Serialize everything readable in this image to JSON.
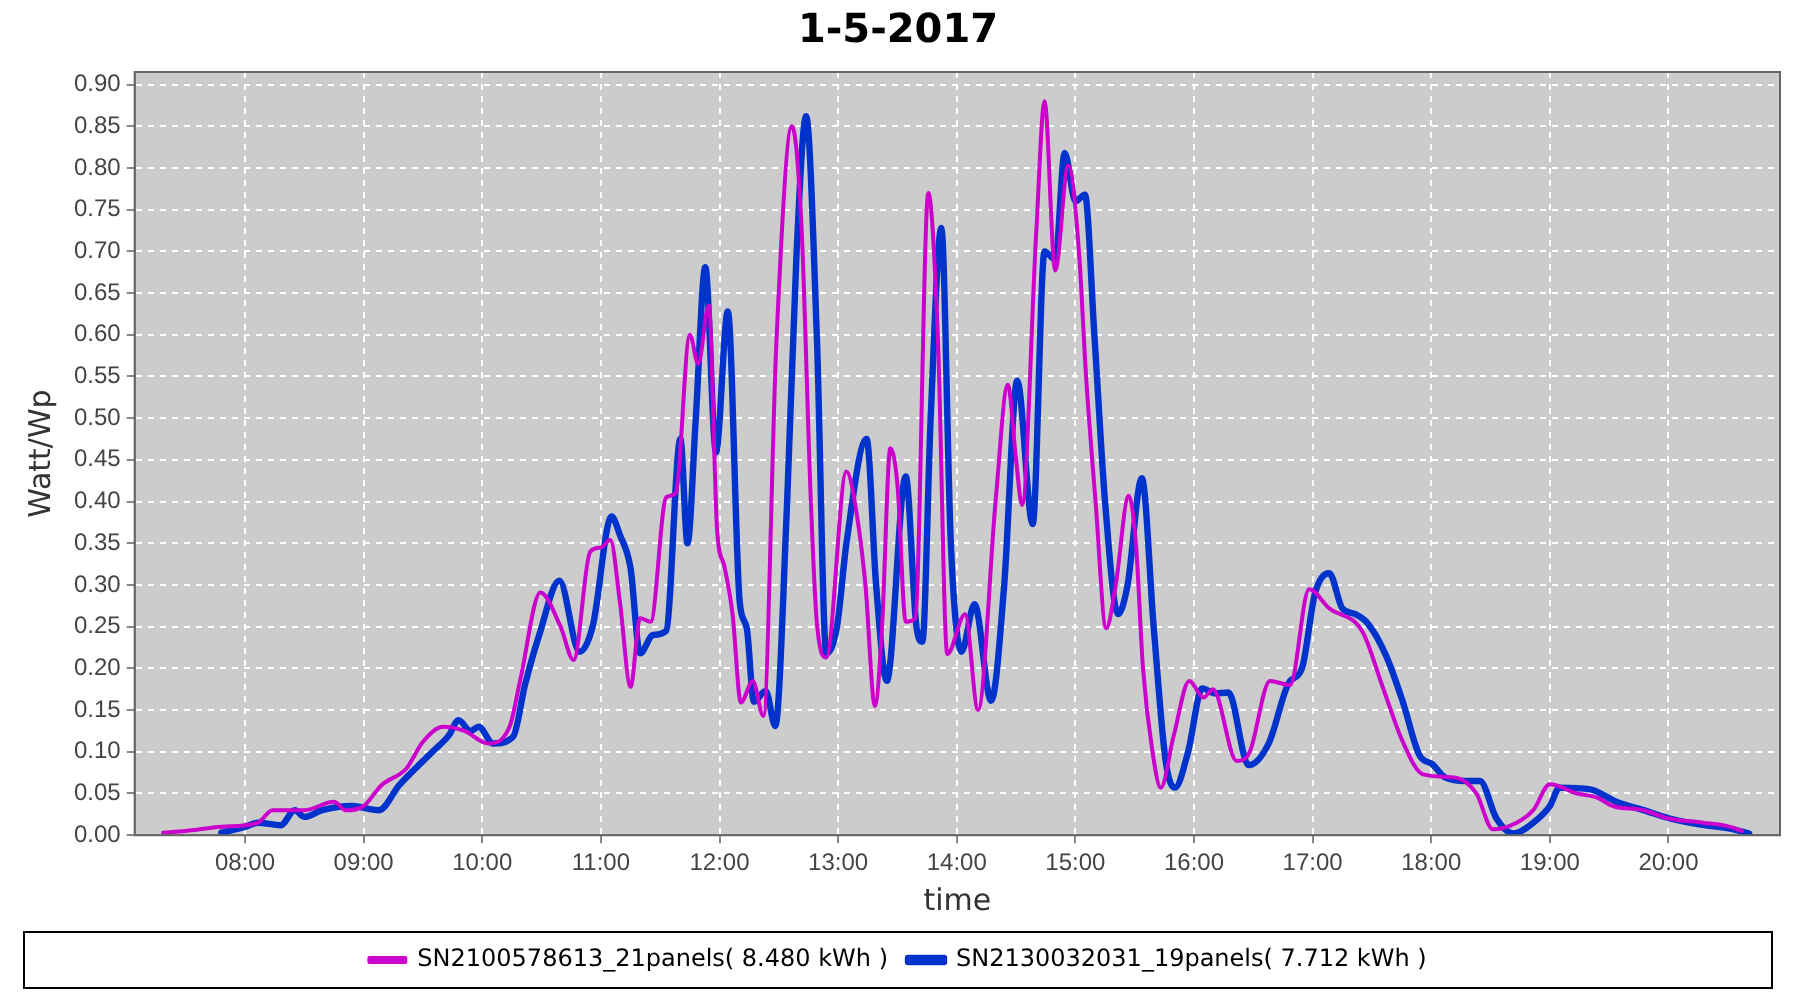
{
  "chart_data": {
    "type": "line",
    "title": "1-5-2017",
    "xlabel": "time",
    "ylabel": "Watt/Wp",
    "x": [
      7.31,
      7.5,
      7.8,
      8.11,
      8.23,
      8.5,
      8.75,
      8.85,
      9.0,
      9.15,
      9.36,
      9.5,
      9.67,
      9.85,
      10.05,
      10.23,
      10.32,
      10.49,
      10.66,
      10.77,
      10.91,
      11.0,
      11.08,
      11.16,
      11.25,
      11.33,
      11.42,
      11.55,
      11.63,
      11.75,
      11.82,
      11.91,
      11.98,
      12.04,
      12.11,
      12.18,
      12.28,
      12.37,
      12.48,
      12.61,
      12.69,
      12.77,
      12.82,
      12.9,
      13.07,
      13.16,
      13.23,
      13.31,
      13.37,
      13.44,
      13.5,
      13.57,
      13.65,
      13.76,
      13.84,
      13.92,
      14.07,
      14.18,
      14.33,
      14.43,
      14.5,
      14.55,
      14.67,
      14.74,
      14.83,
      14.94,
      15.03,
      15.09,
      15.17,
      15.26,
      15.34,
      15.45,
      15.51,
      15.57,
      15.65,
      15.72,
      15.83,
      15.96,
      16.08,
      16.16,
      16.36,
      16.47,
      16.64,
      16.81,
      16.97,
      17.14,
      17.42,
      17.59,
      17.76,
      17.93,
      18.21,
      18.38,
      18.52,
      18.72,
      18.86,
      19.0,
      19.23,
      19.4,
      19.53,
      19.79,
      20.0,
      20.29,
      20.52,
      20.62
    ],
    "series": [
      {
        "name": "SN2100578613_21panels( 8.480 kWh )",
        "color": "#cc00cc",
        "values": [
          0.003,
          0.005,
          0.01,
          0.015,
          0.03,
          0.03,
          0.04,
          0.03,
          0.035,
          0.06,
          0.08,
          0.112,
          0.13,
          0.125,
          0.11,
          0.13,
          0.186,
          0.291,
          0.25,
          0.21,
          0.34,
          0.345,
          0.354,
          0.28,
          0.178,
          0.26,
          0.256,
          0.405,
          0.41,
          0.6,
          0.565,
          0.635,
          0.365,
          0.323,
          0.265,
          0.159,
          0.185,
          0.143,
          0.593,
          0.85,
          0.733,
          0.4,
          0.256,
          0.213,
          0.436,
          0.382,
          0.3,
          0.155,
          0.25,
          0.464,
          0.42,
          0.256,
          0.26,
          0.77,
          0.6,
          0.217,
          0.265,
          0.15,
          0.405,
          0.54,
          0.45,
          0.396,
          0.723,
          0.88,
          0.677,
          0.803,
          0.7,
          0.55,
          0.4,
          0.248,
          0.3,
          0.407,
          0.35,
          0.2,
          0.1,
          0.057,
          0.12,
          0.185,
          0.165,
          0.175,
          0.089,
          0.1,
          0.185,
          0.18,
          0.295,
          0.272,
          0.244,
          0.178,
          0.112,
          0.073,
          0.069,
          0.05,
          0.007,
          0.015,
          0.03,
          0.061,
          0.05,
          0.045,
          0.035,
          0.03,
          0.02,
          0.015,
          0.01,
          0.005
        ]
      },
      {
        "name": "SN2130032031_19panels( 7.712 kWh )",
        "color": "#0033cc",
        "x": [
          7.8,
          8.0,
          8.11,
          8.3,
          8.42,
          8.5,
          8.65,
          8.9,
          9.13,
          9.3,
          9.58,
          9.72,
          9.8,
          9.9,
          9.97,
          10.09,
          10.26,
          10.36,
          10.48,
          10.65,
          10.82,
          10.93,
          11.09,
          11.16,
          11.25,
          11.33,
          11.44,
          11.55,
          11.67,
          11.73,
          11.8,
          11.88,
          11.97,
          12.07,
          12.17,
          12.23,
          12.29,
          12.39,
          12.47,
          12.57,
          12.65,
          12.73,
          12.82,
          12.9,
          12.99,
          13.07,
          13.24,
          13.32,
          13.41,
          13.57,
          13.66,
          13.71,
          13.78,
          13.87,
          13.95,
          14.04,
          14.15,
          14.29,
          14.4,
          14.51,
          14.64,
          14.74,
          14.83,
          14.91,
          15.0,
          15.08,
          15.16,
          15.25,
          15.36,
          15.44,
          15.56,
          15.66,
          15.76,
          15.84,
          15.95,
          16.07,
          16.18,
          16.29,
          16.46,
          16.63,
          16.8,
          16.91,
          17.02,
          17.14,
          17.25,
          17.36,
          17.47,
          17.62,
          17.76,
          17.9,
          18.01,
          18.12,
          18.29,
          18.41,
          18.55,
          18.69,
          18.86,
          19.0,
          19.08,
          19.34,
          19.56,
          19.79,
          20.01,
          20.3,
          20.52,
          20.68
        ],
        "values": [
          0.003,
          0.01,
          0.015,
          0.012,
          0.03,
          0.022,
          0.03,
          0.035,
          0.03,
          0.06,
          0.1,
          0.12,
          0.138,
          0.125,
          0.13,
          0.11,
          0.118,
          0.18,
          0.24,
          0.305,
          0.22,
          0.25,
          0.382,
          0.36,
          0.32,
          0.218,
          0.24,
          0.245,
          0.475,
          0.35,
          0.5,
          0.681,
          0.459,
          0.628,
          0.28,
          0.248,
          0.16,
          0.173,
          0.131,
          0.4,
          0.7,
          0.862,
          0.6,
          0.218,
          0.25,
          0.35,
          0.475,
          0.3,
          0.185,
          0.43,
          0.25,
          0.232,
          0.5,
          0.728,
          0.35,
          0.22,
          0.277,
          0.161,
          0.3,
          0.545,
          0.373,
          0.7,
          0.69,
          0.818,
          0.76,
          0.768,
          0.6,
          0.4,
          0.265,
          0.3,
          0.428,
          0.25,
          0.09,
          0.057,
          0.1,
          0.176,
          0.17,
          0.171,
          0.084,
          0.11,
          0.183,
          0.2,
          0.29,
          0.314,
          0.272,
          0.265,
          0.253,
          0.215,
          0.16,
          0.096,
          0.085,
          0.069,
          0.065,
          0.065,
          0.02,
          0.002,
          0.015,
          0.035,
          0.057,
          0.055,
          0.04,
          0.03,
          0.02,
          0.012,
          0.008,
          0.002
        ]
      }
    ],
    "xlim": [
      7.07,
      20.94
    ],
    "xticks": [
      {
        "value": 8,
        "label": "08:00"
      },
      {
        "value": 9,
        "label": "09:00"
      },
      {
        "value": 10,
        "label": "10:00"
      },
      {
        "value": 11,
        "label": "11:00"
      },
      {
        "value": 12,
        "label": "12:00"
      },
      {
        "value": 13,
        "label": "13:00"
      },
      {
        "value": 14,
        "label": "14:00"
      },
      {
        "value": 15,
        "label": "15:00"
      },
      {
        "value": 16,
        "label": "16:00"
      },
      {
        "value": 17,
        "label": "17:00"
      },
      {
        "value": 18,
        "label": "18:00"
      },
      {
        "value": 19,
        "label": "19:00"
      },
      {
        "value": 20,
        "label": "20:00"
      }
    ],
    "ylim": [
      0,
      0.915
    ],
    "yticks": [
      {
        "value": 0,
        "label": "0.00"
      },
      {
        "value": 0.05,
        "label": "0.05"
      },
      {
        "value": 0.1,
        "label": "0.10"
      },
      {
        "value": 0.15,
        "label": "0.15"
      },
      {
        "value": 0.2,
        "label": "0.20"
      },
      {
        "value": 0.25,
        "label": "0.25"
      },
      {
        "value": 0.3,
        "label": "0.30"
      },
      {
        "value": 0.35,
        "label": "0.35"
      },
      {
        "value": 0.4,
        "label": "0.40"
      },
      {
        "value": 0.45,
        "label": "0.45"
      },
      {
        "value": 0.5,
        "label": "0.50"
      },
      {
        "value": 0.55,
        "label": "0.55"
      },
      {
        "value": 0.6,
        "label": "0.60"
      },
      {
        "value": 0.65,
        "label": "0.65"
      },
      {
        "value": 0.7,
        "label": "0.70"
      },
      {
        "value": 0.75,
        "label": "0.75"
      },
      {
        "value": 0.8,
        "label": "0.80"
      },
      {
        "value": 0.85,
        "label": "0.85"
      },
      {
        "value": 0.9,
        "label": "0.90"
      }
    ],
    "grid": true,
    "legend": "bottom",
    "marker": "none",
    "line_style": "solid"
  }
}
